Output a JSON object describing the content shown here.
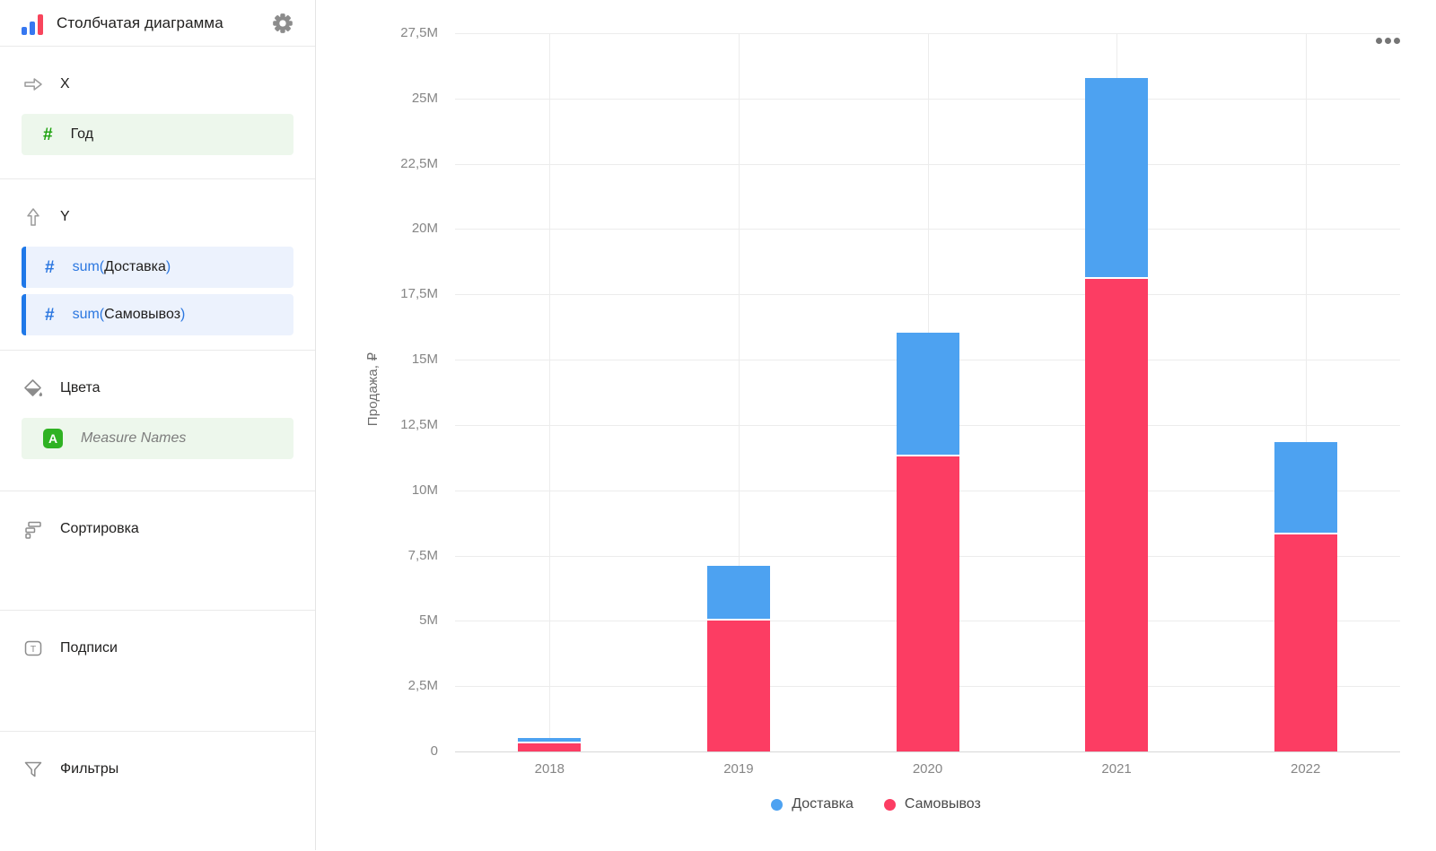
{
  "app": {
    "title": "Столбчатая диаграмма",
    "logo_bar_colors": [
      "#3677f0",
      "#3677f0",
      "#f8455c"
    ]
  },
  "icons": {
    "number_sign": "#",
    "measure_names_badge": "A",
    "text_label_glyph": "T"
  },
  "sidebar": {
    "x_section": {
      "label": "X",
      "field": {
        "name": "Год"
      }
    },
    "y_section": {
      "label": "Y",
      "fields": [
        {
          "prefix": "sum(",
          "name": "Доставка",
          "suffix": ")"
        },
        {
          "prefix": "sum(",
          "name": "Самовывоз",
          "suffix": ")"
        }
      ]
    },
    "colors_section": {
      "label": "Цвета",
      "field": {
        "name": "Measure Names"
      }
    },
    "sorting_section": {
      "label": "Сортировка"
    },
    "labels_section": {
      "label": "Подписи"
    },
    "filters_section": {
      "label": "Фильтры"
    }
  },
  "chart_data": {
    "type": "bar",
    "stacked": true,
    "categories": [
      "2018",
      "2019",
      "2020",
      "2021",
      "2022"
    ],
    "series": [
      {
        "name": "Доставка",
        "color": "#4DA2F1",
        "values": [
          0.2,
          2.1,
          4.75,
          7.7,
          3.55
        ]
      },
      {
        "name": "Самовывоз",
        "color": "#FC3D63",
        "values": [
          0.32,
          5.0,
          11.3,
          18.1,
          8.3
        ]
      }
    ],
    "values_unit": "M",
    "stack_bottom_to_top": [
      "Самовывоз",
      "Доставка"
    ],
    "title": "",
    "xlabel": "",
    "ylabel": "Продажа, ₽",
    "ylim": [
      0,
      27.5
    ],
    "ytick_step": 2.5,
    "ytick_labels": [
      "0",
      "2,5M",
      "5M",
      "7,5M",
      "10M",
      "12,5M",
      "15M",
      "17,5M",
      "20M",
      "22,5M",
      "25M",
      "27,5M"
    ],
    "grid": true,
    "legend_position": "bottom"
  }
}
